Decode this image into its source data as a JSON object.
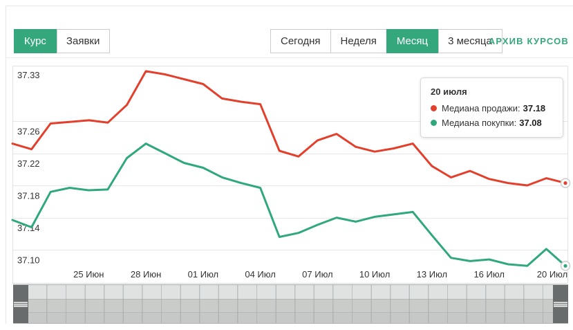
{
  "header": {
    "view_tabs": [
      {
        "label": "Курс",
        "active": true
      },
      {
        "label": "Заявки",
        "active": false
      }
    ],
    "period_tabs": [
      {
        "label": "Сегодня",
        "active": false
      },
      {
        "label": "Неделя",
        "active": false
      },
      {
        "label": "Месяц",
        "active": true
      },
      {
        "label": "3 месяца",
        "active": false
      }
    ],
    "archive_link": "АРХИВ КУРСОВ"
  },
  "colors": {
    "accent": "#35a77d",
    "sell_line": "#e2402c",
    "buy_line": "#2fa87c",
    "gridline": "#e7e7e7",
    "axis_text": "#333333",
    "marker_ring": "#cccccc"
  },
  "chart_data": {
    "type": "line",
    "title": "",
    "xlabel": "",
    "ylabel": "",
    "grid": true,
    "legend_position": "tooltip-only",
    "ylim": [
      37.06,
      37.35
    ],
    "x": [
      "21 Июн",
      "22 Июн",
      "23 Июн",
      "24 Июн",
      "25 Июн",
      "26 Июн",
      "27 Июн",
      "28 Июн",
      "29 Июн",
      "30 Июн",
      "01 Июл",
      "02 Июл",
      "03 Июл",
      "04 Июл",
      "05 Июл",
      "06 Июл",
      "07 Июл",
      "08 Июл",
      "09 Июл",
      "10 Июл",
      "11 Июл",
      "12 Июл",
      "13 Июл",
      "14 Июл",
      "15 Июл",
      "16 Июл",
      "17 Июл",
      "18 Июл",
      "19 Июл",
      "20 Июл"
    ],
    "y_ticks": [
      "37.33",
      "37.26",
      "37.22",
      "37.18",
      "37.14",
      "37.10"
    ],
    "x_tick_labels": [
      "25 Июн",
      "28 Июн",
      "01 Июл",
      "04 Июл",
      "07 Июл",
      "10 Июл",
      "13 Июл",
      "16 Июл",
      "20 Июл"
    ],
    "x_tick_indexes": [
      4,
      7,
      10,
      13,
      16,
      19,
      22,
      25,
      29
    ],
    "series": [
      {
        "name": "Медиана продажи",
        "color": "#e2402c",
        "values": [
          37.232,
          37.225,
          37.257,
          37.259,
          37.261,
          37.258,
          37.28,
          37.322,
          37.318,
          37.312,
          37.306,
          37.288,
          37.284,
          37.281,
          37.223,
          37.216,
          37.236,
          37.244,
          37.228,
          37.222,
          37.226,
          37.232,
          37.204,
          37.19,
          37.198,
          37.188,
          37.183,
          37.18,
          37.189,
          37.183
        ]
      },
      {
        "name": "Медиана покупки",
        "color": "#2fa87c",
        "values": [
          37.137,
          37.128,
          37.172,
          37.177,
          37.174,
          37.175,
          37.214,
          37.232,
          37.22,
          37.208,
          37.202,
          37.19,
          37.183,
          37.177,
          37.116,
          37.121,
          37.131,
          37.14,
          37.135,
          37.141,
          37.144,
          37.147,
          37.118,
          37.09,
          37.086,
          37.088,
          37.082,
          37.08,
          37.101,
          37.08
        ]
      }
    ]
  },
  "tooltip": {
    "title": "20 июля",
    "rows": [
      {
        "label": "Медиана продажи:",
        "value": "37.18",
        "color": "#e2402c"
      },
      {
        "label": "Медиана покупки:",
        "value": "37.08",
        "color": "#2fa87c"
      }
    ]
  }
}
